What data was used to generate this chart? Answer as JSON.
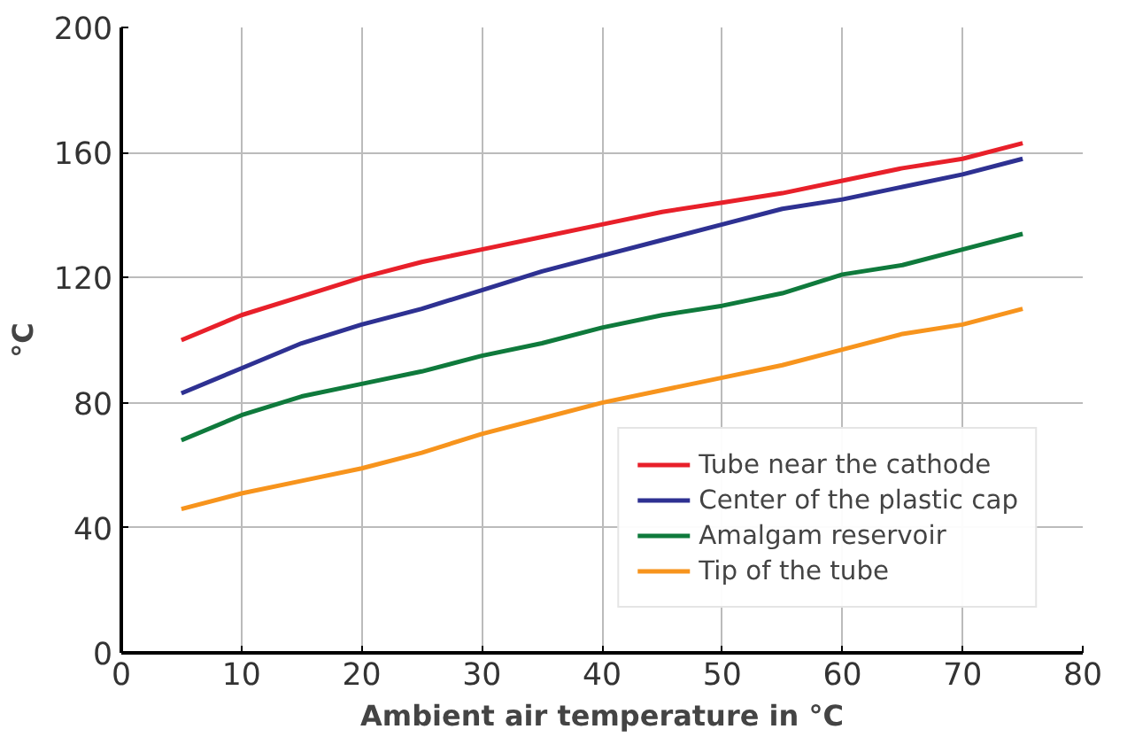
{
  "chart_data": {
    "type": "line",
    "xlabel": "Ambient air temperature in °C",
    "ylabel": "°C",
    "x": [
      5,
      10,
      15,
      20,
      25,
      30,
      35,
      40,
      45,
      50,
      55,
      60,
      65,
      70,
      75
    ],
    "series": [
      {
        "name": "Tube near the cathode",
        "color": "#e8202a",
        "values": [
          100,
          108,
          114,
          120,
          125,
          129,
          133,
          137,
          141,
          144,
          147,
          151,
          155,
          158,
          163
        ]
      },
      {
        "name": "Center of the plastic cap",
        "color": "#2e3192",
        "values": [
          83,
          91,
          99,
          105,
          110,
          116,
          122,
          127,
          132,
          137,
          142,
          145,
          149,
          153,
          158
        ]
      },
      {
        "name": "Amalgam reservoir",
        "color": "#0f7a3c",
        "values": [
          68,
          76,
          82,
          86,
          90,
          95,
          99,
          104,
          108,
          111,
          115,
          121,
          124,
          129,
          134
        ]
      },
      {
        "name": "Tip of the tube",
        "color": "#f7941d",
        "values": [
          46,
          51,
          55,
          59,
          64,
          70,
          75,
          80,
          84,
          88,
          92,
          97,
          102,
          105,
          110
        ]
      }
    ],
    "xlim": [
      0,
      80
    ],
    "xticks": [
      0,
      10,
      20,
      30,
      40,
      50,
      60,
      70,
      80
    ],
    "ylim": [
      0,
      200
    ],
    "yticks": [
      0,
      40,
      80,
      120,
      160,
      200
    ],
    "grid": true,
    "legend": "bottom right",
    "marker": "none",
    "line_style": "solid"
  }
}
